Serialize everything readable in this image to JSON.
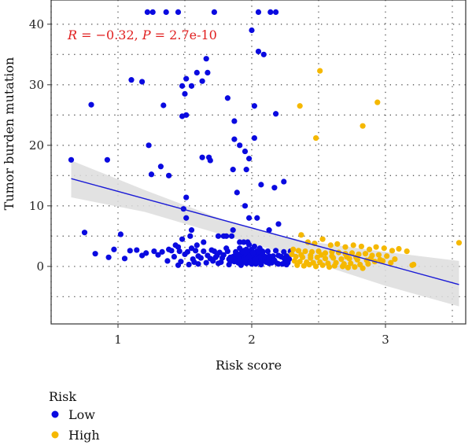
{
  "chart_data": {
    "type": "scatter",
    "title": "",
    "xlabel": "Risk score",
    "ylabel": "Tumor burden mutation",
    "xlim": [
      0.5,
      3.6
    ],
    "ylim": [
      -9.5,
      44
    ],
    "x_ticks": [
      1,
      2,
      3
    ],
    "y_ticks": [
      0,
      10,
      20,
      30,
      40
    ],
    "grid": true,
    "annotation": {
      "text": "R = −0.32, P = 2.7e-10",
      "r_label": "R",
      "r_value": " = −0.32, ",
      "p_label": "P",
      "p_value": " = 2.7e-10"
    },
    "legend": {
      "title": "Risk",
      "placement": "bottom-left",
      "entries": [
        {
          "label": "Low",
          "color": "#0a0ae0"
        },
        {
          "label": "High",
          "color": "#f5b800"
        }
      ]
    },
    "regression": {
      "x": [
        0.65,
        3.55
      ],
      "y": [
        14.5,
        -3.0
      ],
      "color": "#1a1ad6",
      "band_color": "#dddddd",
      "band": {
        "x": [
          0.65,
          1.2,
          1.8,
          2.1,
          2.4,
          3.0,
          3.55
        ],
        "upper": [
          17.5,
          12.6,
          7.6,
          5.7,
          4.2,
          2.4,
          0.9
        ],
        "lower": [
          11.4,
          9.0,
          5.1,
          3.1,
          1.1,
          -3.2,
          -6.6
        ]
      }
    },
    "series": [
      {
        "name": "Low",
        "color": "#0a0ae0",
        "x": [
          1.22,
          1.26,
          1.36,
          1.45,
          1.72,
          2.05,
          2.14,
          2.18,
          2.0,
          2.05,
          2.09,
          1.66,
          1.1,
          1.18,
          1.63,
          1.67,
          1.48,
          1.55,
          1.5,
          1.51,
          0.8,
          1.82,
          1.48,
          1.87,
          2.18,
          2.02,
          1.34,
          1.59,
          1.51,
          1.87,
          1.95,
          2.02,
          1.91,
          1.98,
          1.23,
          1.69,
          1.68,
          1.86,
          1.63,
          1.38,
          1.96,
          1.32,
          1.25,
          2.07,
          2.24,
          2.17,
          1.89,
          1.51,
          1.49,
          1.95,
          0.65,
          0.92,
          1.51,
          1.98,
          2.04,
          2.2,
          1.55,
          1.86,
          2.13,
          1.54,
          1.81,
          1.75,
          1.79,
          1.85,
          1.91,
          1.97,
          1.64,
          1.48,
          1.59,
          1.45,
          1.43,
          1.38,
          1.55,
          1.72,
          1.81,
          1.91,
          2.0,
          2.08,
          0.75,
          0.97,
          1.02,
          1.09,
          1.14,
          1.21,
          1.27,
          1.33,
          1.4,
          1.46,
          1.52,
          1.58,
          1.64,
          1.7,
          1.76,
          1.82,
          1.88,
          1.94,
          2.0,
          2.06,
          2.12,
          2.18,
          2.24,
          2.29,
          0.83,
          0.93,
          1.05,
          1.18,
          1.42,
          1.6,
          1.74,
          1.84,
          1.93,
          2.01,
          2.1,
          2.16,
          2.22,
          2.27,
          1.3,
          1.5,
          1.67,
          1.79,
          1.89,
          1.97,
          2.05,
          2.13,
          2.2,
          2.26,
          1.94,
          1.98,
          2.02,
          2.06,
          1.96,
          2.0,
          2.04,
          2.08,
          1.97,
          2.01,
          2.05,
          1.99,
          2.03,
          1.87,
          1.9,
          1.93,
          1.96,
          1.99,
          2.03,
          2.07,
          2.11,
          2.15,
          2.19,
          2.23,
          2.27,
          1.89,
          1.92,
          1.95,
          1.98,
          2.01,
          2.04,
          2.07,
          2.1,
          2.14,
          2.17,
          1.56,
          1.62,
          1.69,
          1.73,
          1.78,
          1.83,
          1.86,
          1.9,
          1.94,
          1.99,
          2.02,
          2.09,
          2.13,
          2.24,
          2.28,
          1.45,
          1.53,
          1.6,
          1.75,
          1.83,
          1.92,
          2.0,
          2.07,
          2.13,
          2.2,
          2.26,
          1.37,
          1.47,
          1.57,
          1.66,
          1.71,
          1.77,
          1.84,
          1.9,
          1.95,
          2.03,
          2.12,
          2.17,
          2.25,
          1.88,
          1.92,
          1.96,
          2.0,
          2.04,
          2.08,
          1.85,
          1.9,
          1.94,
          1.98,
          2.02,
          2.06,
          1.91,
          1.95,
          1.99,
          2.03,
          1.93,
          1.97,
          2.01,
          2.05
        ],
        "y": [
          42,
          42,
          42,
          42,
          42,
          42,
          42,
          42,
          39,
          35.5,
          35,
          34.3,
          30.8,
          30.5,
          30.6,
          32,
          29.8,
          29.8,
          28.5,
          25,
          26.7,
          27.8,
          24.8,
          24,
          25.2,
          26.5,
          26.6,
          32,
          31,
          21,
          19,
          21.2,
          20,
          17.8,
          20,
          17.5,
          18,
          16,
          18,
          15,
          16,
          16.5,
          15.2,
          13.5,
          14,
          13,
          12.2,
          11.4,
          9.5,
          10,
          17.6,
          17.6,
          8,
          8,
          8,
          7,
          6,
          6,
          6,
          5,
          5,
          5,
          5,
          5,
          4,
          4,
          4,
          4.5,
          3.5,
          3.2,
          3.5,
          2.8,
          3,
          2.5,
          3,
          3,
          2.8,
          2.5,
          5.6,
          2.8,
          5.3,
          2.6,
          2.7,
          2.2,
          2.5,
          2.4,
          2.6,
          2.5,
          2.4,
          2.6,
          2.5,
          2.7,
          2.3,
          2.5,
          2.4,
          2.6,
          2.5,
          2.4,
          2.5,
          2.6,
          2.4,
          2.5,
          2.1,
          1.5,
          1.3,
          1.8,
          1.6,
          1.7,
          1.8,
          1.5,
          1.7,
          1.8,
          1.6,
          1.7,
          1.6,
          1.5,
          1.9,
          2.0,
          1.8,
          1.9,
          1.7,
          1.8,
          1.9,
          1.7,
          1.8,
          1.7,
          4.0,
          3.6,
          3.3,
          3.0,
          2.8,
          2.7,
          2.5,
          2.2,
          2.0,
          1.8,
          1.5,
          1.2,
          1.0,
          0.8,
          0.6,
          0.7,
          0.5,
          0.6,
          0.4,
          0.5,
          0.7,
          0.6,
          0.5,
          0.4,
          0.6,
          1.0,
          1.2,
          0.9,
          1.1,
          0.8,
          1.0,
          1.2,
          0.9,
          1.1,
          1.0,
          1.2,
          1.4,
          1.3,
          1.5,
          1.4,
          1.2,
          1.6,
          1.5,
          1.3,
          1.4,
          1.2,
          1.5,
          1.3,
          1.4,
          1.2,
          0.2,
          0.3,
          0.4,
          0.5,
          0.3,
          0.2,
          0.4,
          0.3,
          0.5,
          0.4,
          0.3,
          0.9,
          0.8,
          0.7,
          0.6,
          0.9,
          0.7,
          0.8,
          0.6,
          0.9,
          0.8,
          0.7,
          0.9,
          0.8,
          2.0,
          2.2,
          1.9,
          2.1,
          2.3,
          2.0,
          1.5,
          1.7,
          1.4,
          1.6,
          1.8,
          1.5,
          1.0,
          1.1,
          0.9,
          1.2,
          2.4,
          2.6,
          2.3,
          2.5
        ]
      },
      {
        "name": "High",
        "color": "#f5b800",
        "x": [
          2.51,
          2.94,
          2.36,
          2.83,
          2.48,
          3.55,
          2.37,
          2.42,
          2.47,
          2.53,
          2.59,
          2.64,
          2.7,
          2.76,
          2.82,
          2.88,
          2.93,
          2.99,
          3.05,
          3.1,
          3.16,
          2.31,
          2.35,
          2.4,
          2.45,
          2.5,
          2.55,
          2.6,
          2.65,
          2.7,
          2.75,
          2.8,
          2.85,
          2.9,
          2.95,
          3.01,
          3.07,
          3.2,
          2.33,
          2.38,
          2.44,
          2.49,
          2.55,
          2.61,
          2.67,
          2.73,
          2.79,
          2.86,
          2.92,
          2.98,
          3.04,
          2.32,
          2.36,
          2.41,
          2.46,
          2.51,
          2.57,
          2.63,
          2.69,
          2.74,
          2.81,
          2.87,
          3.21,
          2.34,
          2.39,
          2.43,
          2.48,
          2.53,
          2.58,
          2.62,
          2.68,
          2.72,
          2.77,
          2.83,
          2.3,
          2.37,
          2.44,
          2.52,
          2.6,
          2.71,
          2.78,
          2.89,
          2.96
        ],
        "y": [
          32.3,
          27.1,
          26.5,
          23.2,
          21.2,
          3.9,
          5.2,
          4.0,
          3.8,
          4.5,
          3.5,
          3.7,
          3.2,
          3.5,
          3.3,
          2.8,
          3.2,
          3.0,
          2.6,
          2.9,
          2.5,
          2.8,
          2.6,
          2.5,
          2.4,
          2.5,
          2.2,
          2.4,
          2.3,
          2.1,
          2.2,
          2.0,
          2.1,
          1.8,
          1.9,
          1.7,
          1.2,
          0.2,
          1.6,
          1.5,
          1.4,
          1.5,
          1.3,
          1.4,
          1.2,
          1.3,
          1.1,
          1.0,
          0.8,
          0.9,
          0.6,
          0.9,
          0.8,
          0.7,
          0.6,
          0.7,
          0.5,
          0.6,
          0.4,
          0.5,
          0.3,
          0.4,
          0.3,
          0.2,
          0.1,
          0.3,
          0.0,
          0.2,
          -0.1,
          0.1,
          0.0,
          -0.2,
          -0.1,
          -0.3,
          2.0,
          1.9,
          1.8,
          1.9,
          1.7,
          1.6,
          1.5,
          1.3,
          1.1
        ]
      }
    ]
  }
}
